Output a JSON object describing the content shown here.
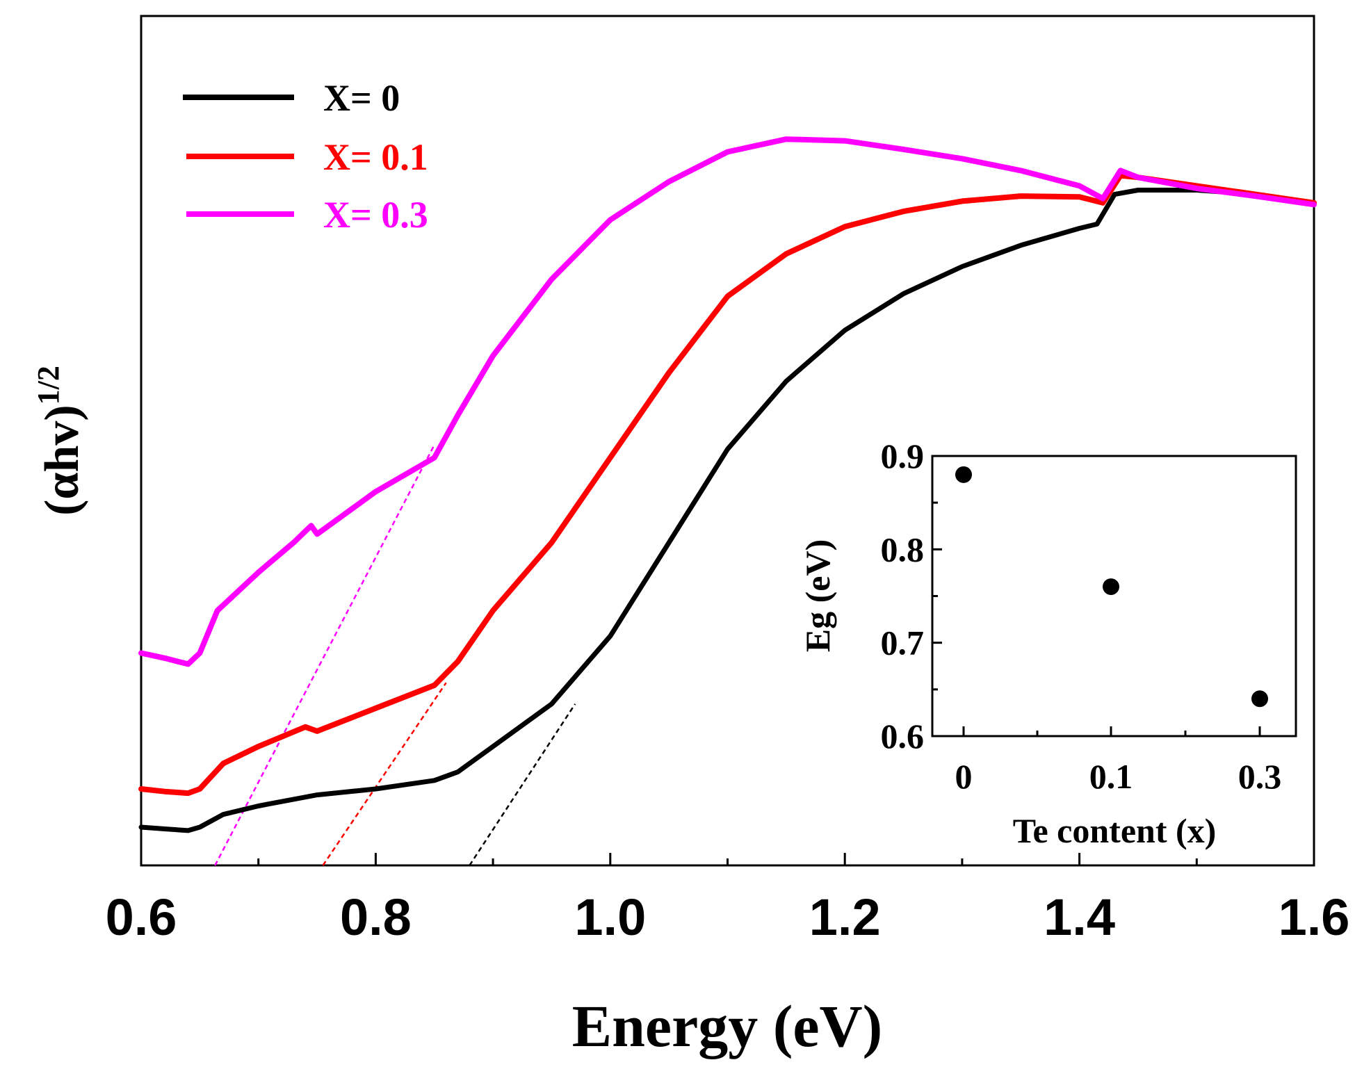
{
  "chart_data": [
    {
      "type": "line",
      "xlabel": "Energy (eV)",
      "ylabel": "(αhv)",
      "ylabel_sup": "1/2",
      "xlim": [
        0.6,
        1.6
      ],
      "ylim": [
        0,
        1
      ],
      "x_ticks": [
        0.6,
        0.8,
        1.0,
        1.2,
        1.4,
        1.6
      ],
      "x_tick_labels": [
        "0.6",
        "0.8",
        "1.0",
        "1.2",
        "1.4",
        "1.6"
      ],
      "y_ticks_labeled": false,
      "grid": false,
      "legend_position": "top-left",
      "colors": [
        "#000000",
        "#ff0000",
        "#ff00ff"
      ],
      "series": [
        {
          "name": "X= 0",
          "color": "#000000",
          "x": [
            0.6,
            0.62,
            0.64,
            0.65,
            0.67,
            0.7,
            0.75,
            0.8,
            0.85,
            0.87,
            0.9,
            0.95,
            1.0,
            1.05,
            1.1,
            1.15,
            1.2,
            1.25,
            1.3,
            1.35,
            1.4,
            1.415,
            1.43,
            1.45,
            1.5,
            1.55,
            1.6
          ],
          "y": [
            0.045,
            0.043,
            0.041,
            0.045,
            0.06,
            0.07,
            0.083,
            0.09,
            0.1,
            0.11,
            0.14,
            0.19,
            0.27,
            0.38,
            0.49,
            0.57,
            0.63,
            0.673,
            0.705,
            0.73,
            0.75,
            0.755,
            0.79,
            0.795,
            0.795,
            0.79,
            0.778
          ]
        },
        {
          "name": "X= 0.1",
          "color": "#ff0000",
          "x": [
            0.6,
            0.62,
            0.64,
            0.65,
            0.67,
            0.7,
            0.74,
            0.75,
            0.8,
            0.85,
            0.87,
            0.9,
            0.95,
            1.0,
            1.05,
            1.1,
            1.15,
            1.2,
            1.25,
            1.3,
            1.35,
            1.4,
            1.42,
            1.435,
            1.45,
            1.5,
            1.55,
            1.6
          ],
          "y": [
            0.09,
            0.087,
            0.085,
            0.09,
            0.12,
            0.14,
            0.163,
            0.158,
            0.185,
            0.212,
            0.24,
            0.3,
            0.38,
            0.48,
            0.58,
            0.67,
            0.72,
            0.752,
            0.77,
            0.782,
            0.788,
            0.787,
            0.78,
            0.812,
            0.81,
            0.8,
            0.79,
            0.78
          ]
        },
        {
          "name": "X= 0.3",
          "color": "#ff00ff",
          "x": [
            0.6,
            0.62,
            0.64,
            0.65,
            0.665,
            0.7,
            0.73,
            0.745,
            0.75,
            0.8,
            0.85,
            0.87,
            0.9,
            0.95,
            1.0,
            1.05,
            1.1,
            1.15,
            1.2,
            1.25,
            1.3,
            1.35,
            1.4,
            1.42,
            1.435,
            1.45,
            1.5,
            1.55,
            1.6
          ],
          "y": [
            0.25,
            0.244,
            0.237,
            0.25,
            0.3,
            0.345,
            0.38,
            0.4,
            0.39,
            0.44,
            0.48,
            0.53,
            0.6,
            0.69,
            0.76,
            0.805,
            0.84,
            0.855,
            0.853,
            0.843,
            0.832,
            0.818,
            0.8,
            0.785,
            0.818,
            0.81,
            0.797,
            0.788,
            0.778
          ]
        }
      ],
      "fit_lines": [
        {
          "color": "#000000",
          "x": [
            0.88,
            0.97
          ],
          "y": [
            0.0,
            0.19
          ]
        },
        {
          "color": "#ff0000",
          "x": [
            0.755,
            0.86
          ],
          "y": [
            0.0,
            0.215
          ]
        },
        {
          "color": "#ff00ff",
          "x": [
            0.663,
            0.85
          ],
          "y": [
            0.0,
            0.495
          ]
        }
      ]
    },
    {
      "type": "scatter",
      "xlabel": "Te content (x)",
      "ylabel": "Eg (eV)",
      "categories": [
        "0",
        "0.1",
        "0.3"
      ],
      "values": [
        0.88,
        0.76,
        0.64
      ],
      "ylim": [
        0.6,
        0.9
      ],
      "y_ticks": [
        0.6,
        0.7,
        0.8,
        0.9
      ],
      "y_tick_labels": [
        "0.6",
        "0.7",
        "0.8",
        "0.9"
      ],
      "legend_position": "none",
      "grid": false
    }
  ]
}
